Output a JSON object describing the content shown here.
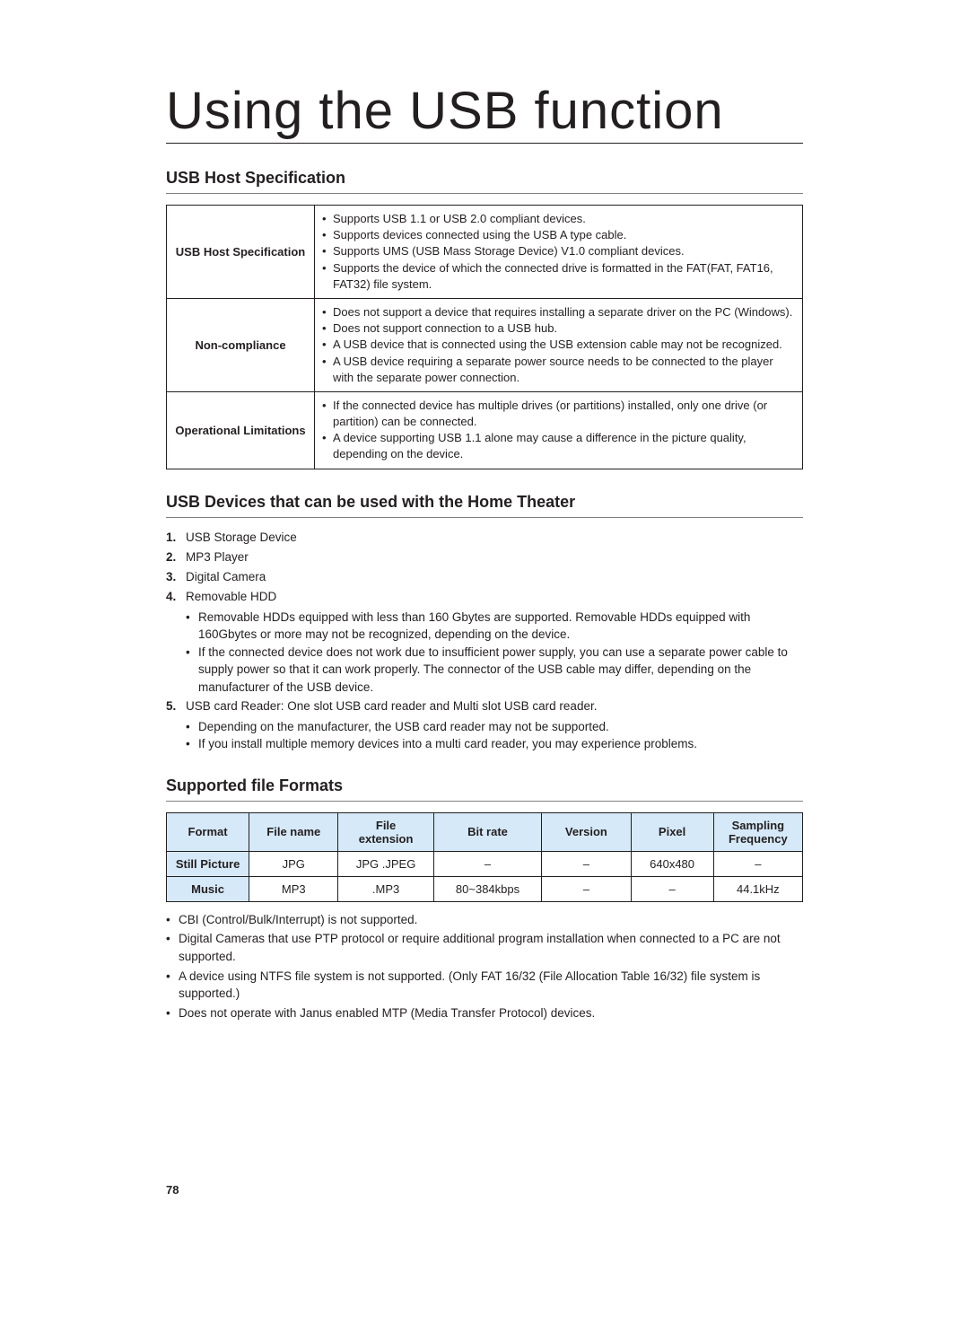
{
  "title": "Using the USB function",
  "page_number": "78",
  "colors": {
    "text": "#231f20",
    "header_bg": "#d6e9f8",
    "rule": "#808080",
    "border": "#231f20"
  },
  "spec_section": {
    "heading": "USB Host Specification",
    "rows": [
      {
        "label": "USB Host Specification",
        "items": [
          "Supports USB 1.1 or USB 2.0 compliant devices.",
          "Supports devices connected using the USB A type cable.",
          "Supports UMS (USB Mass Storage Device) V1.0 compliant devices.",
          "Supports the device of which the connected drive is formatted in the FAT(FAT, FAT16, FAT32) file system."
        ]
      },
      {
        "label": "Non-compliance",
        "items": [
          "Does not support a device that requires installing a separate driver on the PC (Windows).",
          "Does not support connection to a USB hub.",
          "A USB device that is connected using the USB extension cable may not be recognized.",
          "A USB device requiring a separate power source needs to be connected to the player with the separate power connection."
        ]
      },
      {
        "label": "Operational Limitations",
        "items": [
          "If the connected device has multiple drives (or partitions) installed, only one drive (or partition) can be connected.",
          "A device supporting USB 1.1 alone may cause a difference in the picture quality, depending on the device."
        ]
      }
    ]
  },
  "devices_section": {
    "heading": "USB Devices that can be used with the Home Theater",
    "items": [
      {
        "text": "USB Storage Device"
      },
      {
        "text": "MP3 Player"
      },
      {
        "text": "Digital Camera"
      },
      {
        "text": "Removable HDD",
        "sub": [
          "Removable HDDs equipped with less than 160 Gbytes are supported. Removable HDDs equipped with 160Gbytes or more may not be recognized, depending on the device.",
          "If the connected device does not work due to insufficient power supply, you can use a separate power cable to supply power so that it can work properly. The connector of the USB cable may differ, depending on the manufacturer of the USB device."
        ]
      },
      {
        "text": "USB card Reader: One slot USB card reader and Multi slot USB card reader.",
        "sub": [
          "Depending on the manufacturer, the USB card reader may not be supported.",
          "If you install multiple memory devices into a multi card reader, you may experience problems."
        ]
      }
    ]
  },
  "formats_section": {
    "heading": "Supported file Formats",
    "columns": [
      "Format",
      "File name",
      "File extension",
      "Bit rate",
      "Version",
      "Pixel",
      "Sampling Frequency"
    ],
    "col_widths": [
      "13%",
      "14%",
      "15%",
      "17%",
      "14%",
      "13%",
      "14%"
    ],
    "rows": [
      {
        "head": "Still Picture",
        "cells": [
          "JPG",
          "JPG .JPEG",
          "–",
          "–",
          "640x480",
          "–"
        ]
      },
      {
        "head": "Music",
        "cells": [
          "MP3",
          ".MP3",
          "80~384kbps",
          "–",
          "–",
          "44.1kHz"
        ]
      }
    ],
    "notes": [
      "CBI (Control/Bulk/Interrupt) is not supported.",
      "Digital Cameras that use PTP protocol or require additional program installation when connected to a PC are not supported.",
      "A device using NTFS file system is not supported. (Only FAT 16/32 (File Allocation Table 16/32) file system is supported.)",
      "Does not operate with Janus enabled MTP (Media Transfer Protocol) devices."
    ]
  }
}
